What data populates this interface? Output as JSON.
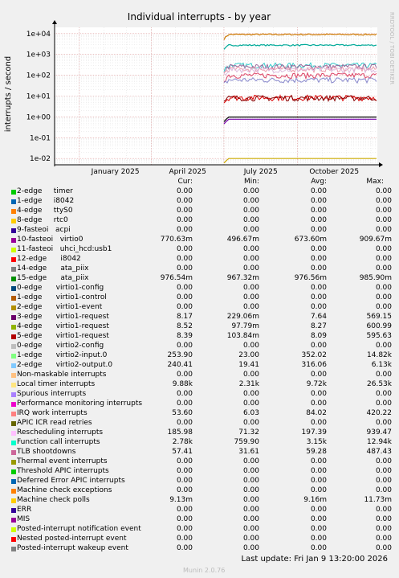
{
  "chart_data": {
    "type": "line",
    "title": "Individual interrupts - by year",
    "ylabel": "interrupts / second",
    "y_scale": "log",
    "ylim": [
      0.005,
      20000
    ],
    "y_ticks": [
      "1e-02",
      "1e-01",
      "1e+00",
      "1e+01",
      "1e+02",
      "1e+03",
      "1e+04"
    ],
    "x_ticks": [
      "January 2025",
      "April 2025",
      "July 2025",
      "October 2025"
    ],
    "side_label": "RRDTOOL / TOBI OETIKER",
    "grid": true,
    "data_start": "2025-07-01",
    "series_levels": [
      {
        "color": "#CC7700",
        "value": 9130
      },
      {
        "color": "#00AA99",
        "value": 2780
      },
      {
        "color": "#33CCCC",
        "value": 300
      },
      {
        "color": "#996699",
        "value": 260
      },
      {
        "color": "#DD4466",
        "value": 100
      },
      {
        "color": "#8888CC",
        "value": 60
      },
      {
        "color": "#EE99AA",
        "value": 200
      },
      {
        "color": "#DDBBDD",
        "value": 186
      },
      {
        "color": "#DD0000",
        "value": 8.5
      },
      {
        "color": "#880000",
        "value": 8.2
      },
      {
        "color": "#000000",
        "value": 0.98
      },
      {
        "color": "#7700AA",
        "value": 0.77
      },
      {
        "color": "#CCAA00",
        "value": 0.01
      }
    ]
  },
  "legend": {
    "headers": {
      "cur": "Cur:",
      "min": "Min:",
      "avg": "Avg:",
      "max": "Max:"
    },
    "rows": [
      {
        "color": "#00CC00",
        "label": "2-edge     timer",
        "cur": "0.00",
        "min": "0.00",
        "avg": "0.00",
        "max": "0.00"
      },
      {
        "color": "#0066B3",
        "label": "1-edge     i8042",
        "cur": "0.00",
        "min": "0.00",
        "avg": "0.00",
        "max": "0.00"
      },
      {
        "color": "#FF8000",
        "label": "4-edge     ttyS0",
        "cur": "0.00",
        "min": "0.00",
        "avg": "0.00",
        "max": "0.00"
      },
      {
        "color": "#FFCC00",
        "label": "8-edge     rtc0",
        "cur": "0.00",
        "min": "0.00",
        "avg": "0.00",
        "max": "0.00"
      },
      {
        "color": "#330099",
        "label": "9-fasteoi   acpi",
        "cur": "0.00",
        "min": "0.00",
        "avg": "0.00",
        "max": "0.00"
      },
      {
        "color": "#990099",
        "label": "10-fasteoi   virtio0",
        "cur": "770.63m",
        "min": "496.67m",
        "avg": "673.60m",
        "max": "909.67m"
      },
      {
        "color": "#CCFF00",
        "label": "11-fasteoi   uhci_hcd:usb1",
        "cur": "0.00",
        "min": "0.00",
        "avg": "0.00",
        "max": "0.00"
      },
      {
        "color": "#FF0000",
        "label": "12-edge      i8042",
        "cur": "0.00",
        "min": "0.00",
        "avg": "0.00",
        "max": "0.00"
      },
      {
        "color": "#808080",
        "label": "14-edge      ata_piix",
        "cur": "0.00",
        "min": "0.00",
        "avg": "0.00",
        "max": "0.00"
      },
      {
        "color": "#008F00",
        "label": "15-edge      ata_piix",
        "cur": "976.54m",
        "min": "967.32m",
        "avg": "976.56m",
        "max": "985.90m"
      },
      {
        "color": "#00487D",
        "label": "0-edge      virtio1-config",
        "cur": "0.00",
        "min": "0.00",
        "avg": "0.00",
        "max": "0.00"
      },
      {
        "color": "#B35A00",
        "label": "1-edge      virtio1-control",
        "cur": "0.00",
        "min": "0.00",
        "avg": "0.00",
        "max": "0.00"
      },
      {
        "color": "#B38F00",
        "label": "2-edge      virtio1-event",
        "cur": "0.00",
        "min": "0.00",
        "avg": "0.00",
        "max": "0.00"
      },
      {
        "color": "#6B006B",
        "label": "3-edge      virtio1-request",
        "cur": "8.17",
        "min": "229.06m",
        "avg": "7.64",
        "max": "569.15"
      },
      {
        "color": "#8FB300",
        "label": "4-edge      virtio1-request",
        "cur": "8.52",
        "min": "97.79m",
        "avg": "8.27",
        "max": "600.99"
      },
      {
        "color": "#B30000",
        "label": "5-edge      virtio1-request",
        "cur": "8.39",
        "min": "103.84m",
        "avg": "8.09",
        "max": "595.63"
      },
      {
        "color": "#BEBEBE",
        "label": "0-edge      virtio2-config",
        "cur": "0.00",
        "min": "0.00",
        "avg": "0.00",
        "max": "0.00"
      },
      {
        "color": "#80FF80",
        "label": "1-edge      virtio2-input.0",
        "cur": "253.90",
        "min": "23.00",
        "avg": "352.02",
        "max": "14.82k"
      },
      {
        "color": "#80C9FF",
        "label": "2-edge      virtio2-output.0",
        "cur": "240.41",
        "min": "19.41",
        "avg": "316.06",
        "max": "6.13k"
      },
      {
        "color": "#FFC080",
        "label": "Non-maskable interrupts",
        "cur": "0.00",
        "min": "0.00",
        "avg": "0.00",
        "max": "0.00"
      },
      {
        "color": "#FFE680",
        "label": "Local timer interrupts",
        "cur": "9.88k",
        "min": "2.31k",
        "avg": "9.72k",
        "max": "26.53k"
      },
      {
        "color": "#AA80FF",
        "label": "Spurious interrupts",
        "cur": "0.00",
        "min": "0.00",
        "avg": "0.00",
        "max": "0.00"
      },
      {
        "color": "#EE00CC",
        "label": "Performance monitoring interrupts",
        "cur": "0.00",
        "min": "0.00",
        "avg": "0.00",
        "max": "0.00"
      },
      {
        "color": "#FF8080",
        "label": "IRQ work interrupts",
        "cur": "53.60",
        "min": "6.03",
        "avg": "84.02",
        "max": "420.22"
      },
      {
        "color": "#666600",
        "label": "APIC ICR read retries",
        "cur": "0.00",
        "min": "0.00",
        "avg": "0.00",
        "max": "0.00"
      },
      {
        "color": "#FFBFFF",
        "label": "Rescheduling interrupts",
        "cur": "185.98",
        "min": "71.32",
        "avg": "197.39",
        "max": "939.47"
      },
      {
        "color": "#00FFCC",
        "label": "Function call interrupts",
        "cur": "2.78k",
        "min": "759.90",
        "avg": "3.15k",
        "max": "12.94k"
      },
      {
        "color": "#CC6699",
        "label": "TLB shootdowns",
        "cur": "57.41",
        "min": "31.61",
        "avg": "59.28",
        "max": "487.43"
      },
      {
        "color": "#999900",
        "label": "Thermal event interrupts",
        "cur": "0.00",
        "min": "0.00",
        "avg": "0.00",
        "max": "0.00"
      },
      {
        "color": "#00CC00",
        "label": "Threshold APIC interrupts",
        "cur": "0.00",
        "min": "0.00",
        "avg": "0.00",
        "max": "0.00"
      },
      {
        "color": "#0066B3",
        "label": "Deferred Error APIC interrupts",
        "cur": "0.00",
        "min": "0.00",
        "avg": "0.00",
        "max": "0.00"
      },
      {
        "color": "#FF8000",
        "label": "Machine check exceptions",
        "cur": "0.00",
        "min": "0.00",
        "avg": "0.00",
        "max": "0.00"
      },
      {
        "color": "#FFCC00",
        "label": "Machine check polls",
        "cur": "9.13m",
        "min": "0.00",
        "avg": "9.16m",
        "max": "11.73m"
      },
      {
        "color": "#330099",
        "label": "ERR",
        "cur": "0.00",
        "min": "0.00",
        "avg": "0.00",
        "max": "0.00"
      },
      {
        "color": "#990099",
        "label": "MIS",
        "cur": "0.00",
        "min": "0.00",
        "avg": "0.00",
        "max": "0.00"
      },
      {
        "color": "#CCFF00",
        "label": "Posted-interrupt notification event",
        "cur": "0.00",
        "min": "0.00",
        "avg": "0.00",
        "max": "0.00"
      },
      {
        "color": "#FF0000",
        "label": "Nested posted-interrupt event",
        "cur": "0.00",
        "min": "0.00",
        "avg": "0.00",
        "max": "0.00"
      },
      {
        "color": "#808080",
        "label": "Posted-interrupt wakeup event",
        "cur": "0.00",
        "min": "0.00",
        "avg": "0.00",
        "max": "0.00"
      }
    ]
  },
  "footer": {
    "last_update": "Last update:  Fri Jan  9 13:20:00 2026",
    "munin_version": "Munin 2.0.76"
  }
}
